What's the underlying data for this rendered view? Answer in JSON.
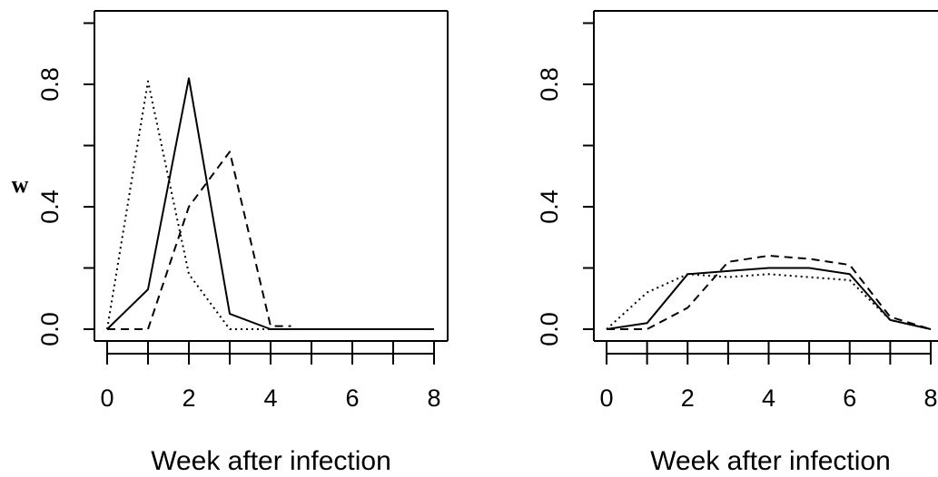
{
  "chart_data": [
    {
      "type": "line",
      "xlabel": "Week after infection",
      "ylabel": "w",
      "xlim": [
        0,
        8
      ],
      "ylim": [
        0,
        1.0
      ],
      "x_ticks": [
        0,
        2,
        4,
        6,
        8
      ],
      "y_ticks": [
        0.0,
        0.4,
        0.8
      ],
      "y_tick_labels": [
        "0.0",
        "0.4",
        "0.8"
      ],
      "grid": false,
      "series": [
        {
          "style": "solid",
          "x": [
            0,
            1,
            2,
            3,
            4,
            5,
            6,
            7,
            8
          ],
          "y": [
            0,
            0.13,
            0.82,
            0.05,
            0,
            0,
            0,
            0,
            0
          ]
        },
        {
          "style": "dotted",
          "x": [
            0,
            1,
            2,
            3,
            4
          ],
          "y": [
            0,
            0.81,
            0.18,
            0,
            0
          ]
        },
        {
          "style": "dashed",
          "x": [
            0,
            1,
            2,
            3,
            4,
            4.5
          ],
          "y": [
            0,
            0,
            0.4,
            0.58,
            0.01,
            0.01
          ]
        }
      ]
    },
    {
      "type": "line",
      "xlabel": "Week after infection",
      "ylabel": "",
      "xlim": [
        0,
        8
      ],
      "ylim": [
        0,
        1.0
      ],
      "x_ticks": [
        0,
        2,
        4,
        6,
        8
      ],
      "y_ticks": [
        0.0,
        0.4,
        0.8
      ],
      "y_tick_labels": [
        "0.0",
        "0.4",
        "0.8"
      ],
      "grid": false,
      "series": [
        {
          "style": "solid",
          "x": [
            0,
            1,
            2,
            3,
            4,
            5,
            6,
            7,
            8
          ],
          "y": [
            0,
            0.02,
            0.18,
            0.19,
            0.2,
            0.2,
            0.18,
            0.03,
            0
          ]
        },
        {
          "style": "dotted",
          "x": [
            0,
            1,
            2,
            3,
            4,
            5,
            6,
            7,
            8
          ],
          "y": [
            0,
            0.12,
            0.18,
            0.17,
            0.18,
            0.17,
            0.16,
            0.03,
            0
          ]
        },
        {
          "style": "dashed",
          "x": [
            0,
            1,
            2,
            3,
            4,
            5,
            6,
            7,
            8
          ],
          "y": [
            0,
            0,
            0.07,
            0.22,
            0.24,
            0.23,
            0.21,
            0.04,
            0
          ]
        }
      ]
    }
  ]
}
